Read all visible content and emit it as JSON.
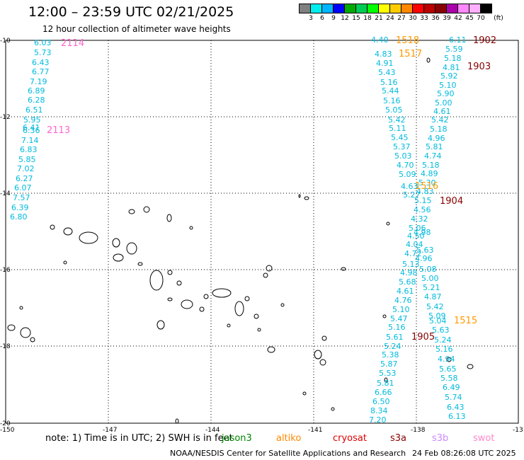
{
  "title": "12:00 – 23:59 UTC 02/21/2025",
  "subtitle": "12 hour collection of altimeter wave heights",
  "colorbar": {
    "unit": "(ft)",
    "colors": [
      "#808080",
      "#00eeee",
      "#00b4ff",
      "#0000ff",
      "#00aa00",
      "#00cc55",
      "#00ff00",
      "#ffff00",
      "#ffcc00",
      "#ff8800",
      "#ff0000",
      "#bb0000",
      "#880000",
      "#aa00aa",
      "#ff88ff",
      "#ffb0ff",
      "#000000"
    ],
    "labels": [
      "3",
      "6",
      "9",
      "12",
      "15",
      "18",
      "21",
      "24",
      "27",
      "30",
      "33",
      "36",
      "39",
      "42",
      "45",
      "70"
    ]
  },
  "axes": {
    "lon_labels": [
      "-150",
      "-147",
      "-144",
      "-141",
      "-138",
      "-13"
    ],
    "lat_labels": [
      "-10",
      "-12",
      "-14",
      "-16",
      "-18",
      "-20"
    ]
  },
  "passes": [
    {
      "label": "2114",
      "color": "#ff66cc"
    },
    {
      "label": "2113",
      "color": "#ff66cc"
    },
    {
      "label": "1518",
      "color": "#ff9900"
    },
    {
      "label": "1517",
      "color": "#ff9900"
    },
    {
      "label": "1516",
      "color": "#ff9900"
    },
    {
      "label": "1515",
      "color": "#ff9900"
    },
    {
      "label": "1902",
      "color": "#880000"
    },
    {
      "label": "1903",
      "color": "#880000"
    },
    {
      "label": "1904",
      "color": "#880000"
    },
    {
      "label": "1905",
      "color": "#880000"
    }
  ],
  "track_colors": {
    "cyan": "#00bbdd"
  },
  "tracks": {
    "track_a": [
      "6.03",
      "5.73",
      "6.43",
      "6.77",
      "7.19",
      "6.89",
      "6.28",
      "6.51",
      "5.95",
      "6.41",
      "6.36",
      "7.14",
      "6.83",
      "5.85",
      "7.02",
      "6.27",
      "6.07",
      "7.57",
      "6.39",
      "6.80"
    ],
    "track_b": [
      "4.40",
      "4.83",
      "4.91",
      "5.43",
      "5.16",
      "5.44",
      "5.16",
      "5.05",
      "5.42",
      "5.11",
      "5.45",
      "5.37",
      "5.03",
      "4.70",
      "5.09",
      "4.63",
      "5.27",
      "5.15",
      "4.56",
      "4.32",
      "5.06",
      "4.50",
      "4.04",
      "4.72",
      "5.13",
      "4.98",
      "5.68",
      "4.61",
      "4.76",
      "5.10",
      "5.47",
      "5.16",
      "5.61",
      "5.24",
      "5.38",
      "5.87",
      "5.53",
      "5.81",
      "6.66",
      "6.50",
      "8.34",
      "7.20"
    ],
    "track_c": [
      "6.11",
      "5.59",
      "5.18",
      "4.81",
      "5.92",
      "5.10",
      "5.90",
      "5.00",
      "4.61",
      "5.42",
      "5.18",
      "4.96",
      "5.81",
      "4.74",
      "5.18",
      "4.89",
      "5.30",
      "4.83",
      "4.98",
      "5.63",
      "4.96",
      "5.08",
      "5.00",
      "5.21",
      "4.87",
      "5.42",
      "5.09",
      "5.04",
      "5.63",
      "5.24",
      "5.16",
      "4.94",
      "5.65",
      "5.58",
      "6.49",
      "5.74",
      "6.43",
      "6.13"
    ]
  },
  "footer": {
    "note": "note: 1) Time is in UTC; 2) SWH is in feet",
    "satellites": [
      {
        "name": "jason3",
        "color": "#008800"
      },
      {
        "name": "altiko",
        "color": "#ff8800"
      },
      {
        "name": "cryosat",
        "color": "#dd0000"
      },
      {
        "name": "s3a",
        "color": "#880000"
      },
      {
        "name": "s3b",
        "color": "#cc88ff"
      },
      {
        "name": "swot",
        "color": "#ff88cc"
      }
    ],
    "credit": "NOAA/NESDIS Center for Satellite Applications and Research",
    "timestamp": "24 Feb 08:26:08 UTC 2025"
  }
}
